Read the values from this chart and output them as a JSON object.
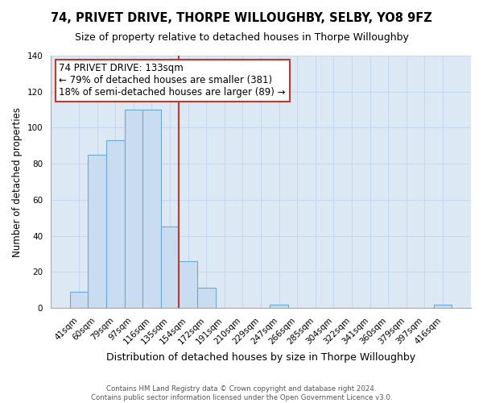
{
  "title": "74, PRIVET DRIVE, THORPE WILLOUGHBY, SELBY, YO8 9FZ",
  "subtitle": "Size of property relative to detached houses in Thorpe Willoughby",
  "xlabel": "Distribution of detached houses by size in Thorpe Willoughby",
  "ylabel": "Number of detached properties",
  "bin_labels": [
    "41sqm",
    "60sqm",
    "79sqm",
    "97sqm",
    "116sqm",
    "135sqm",
    "154sqm",
    "172sqm",
    "191sqm",
    "210sqm",
    "229sqm",
    "247sqm",
    "266sqm",
    "285sqm",
    "304sqm",
    "322sqm",
    "341sqm",
    "360sqm",
    "379sqm",
    "397sqm",
    "416sqm"
  ],
  "bar_heights": [
    9,
    85,
    93,
    110,
    110,
    45,
    26,
    11,
    0,
    0,
    0,
    2,
    0,
    0,
    0,
    0,
    0,
    0,
    0,
    0,
    2
  ],
  "bar_color": "#c9dcf0",
  "bar_edge_color": "#6aaad4",
  "highlight_line_color": "#c0392b",
  "annotation_line1": "74 PRIVET DRIVE: 133sqm",
  "annotation_line2": "← 79% of detached houses are smaller (381)",
  "annotation_line3": "18% of semi-detached houses are larger (89) →",
  "annotation_box_color": "#ffffff",
  "annotation_box_edge_color": "#c0392b",
  "ylim": [
    0,
    140
  ],
  "yticks": [
    0,
    20,
    40,
    60,
    80,
    100,
    120,
    140
  ],
  "footer_line1": "Contains HM Land Registry data © Crown copyright and database right 2024.",
  "footer_line2": "Contains public sector information licensed under the Open Government Licence v3.0.",
  "plot_bg_color": "#dde8f5",
  "fig_bg_color": "#ffffff",
  "grid_color": "#c5d8ee",
  "title_fontsize": 10.5,
  "subtitle_fontsize": 9,
  "axis_label_fontsize": 9,
  "tick_fontsize": 7.5,
  "ylabel_fontsize": 8.5
}
